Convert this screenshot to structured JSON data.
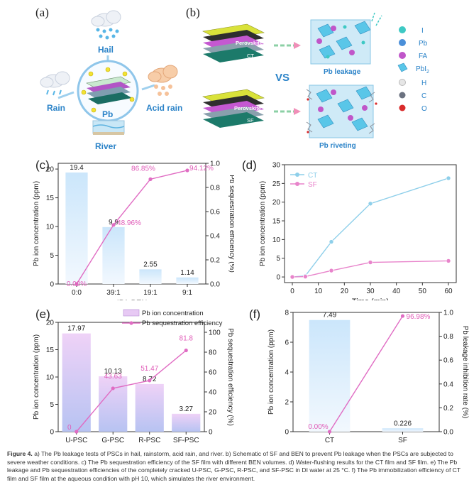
{
  "panel_a": {
    "label": "(a)",
    "hail": "Hail",
    "rain": "Rain",
    "acid_rain": "Acid rain",
    "center": "Pb",
    "river": "River"
  },
  "panel_b": {
    "label": "(b)",
    "top_film_label": "Perovskite",
    "top_film_tag": "CT",
    "bottom_film_label": "Perovskite",
    "bottom_film_tag": "SF",
    "vs": "VS",
    "top_result": "Pb leakage",
    "bottom_result": "Pb riveting",
    "legend": [
      {
        "label": "I",
        "color": "#3ec9c4"
      },
      {
        "label": "Pb",
        "color": "#4a8fd9"
      },
      {
        "label": "FA",
        "color": "#c056c9"
      },
      {
        "label": "PbI",
        "sub": "2",
        "color": "#59c6e8"
      },
      {
        "label": "H",
        "color": "#e6e6e6"
      },
      {
        "label": "C",
        "color": "#6b7280"
      },
      {
        "label": "O",
        "color": "#d92b2b"
      }
    ]
  },
  "chart_data": [
    {
      "id": "c",
      "label": "(c)",
      "type": "bar",
      "categories": [
        "0:0",
        "39:1",
        "19:1",
        "9:1"
      ],
      "values": [
        19.4,
        9.9,
        2.55,
        1.14
      ],
      "value_labels": [
        "19.4",
        "9.9",
        "2.55",
        "1.14"
      ],
      "line": {
        "values": [
          0.0,
          0.4896,
          0.8685,
          0.9412
        ],
        "labels": [
          "0.00%",
          "48.96%",
          "86.85%",
          "94.12%"
        ]
      },
      "xlabel": "IPA:BEN",
      "ylabel": "Pb ion concentration (ppm)",
      "y2label": "Pb sequestration efficiency (%)",
      "ylim": [
        0,
        21
      ],
      "y2lim": [
        0,
        1.0
      ],
      "yticks": [
        "0",
        "5",
        "10",
        "15",
        "20"
      ],
      "y2ticks": [
        "0.0",
        "0.2",
        "0.4",
        "0.6",
        "0.8",
        "1.0"
      ]
    },
    {
      "id": "d",
      "label": "(d)",
      "type": "line",
      "x": [
        0,
        5,
        15,
        30,
        60
      ],
      "series": [
        {
          "name": "CT",
          "color": "#8ecfea",
          "values": [
            0.0,
            0.3,
            9.4,
            19.6,
            26.4
          ]
        },
        {
          "name": "SF",
          "color": "#e884cb",
          "values": [
            0.0,
            0.1,
            1.7,
            3.9,
            4.3
          ]
        }
      ],
      "xlabel": "Time (min)",
      "ylabel": "Pb ion concentration (ppm)",
      "xlim": [
        -3,
        63
      ],
      "ylim": [
        -1.5,
        30
      ],
      "xticks": [
        "0",
        "10",
        "20",
        "30",
        "40",
        "50",
        "60"
      ],
      "yticks": [
        "0",
        "5",
        "10",
        "15",
        "20",
        "25",
        "30"
      ]
    },
    {
      "id": "e",
      "label": "(e)",
      "type": "bar",
      "categories": [
        "U-PSC",
        "G-PSC",
        "R-PSC",
        "SF-PSC"
      ],
      "values": [
        17.97,
        10.13,
        8.72,
        3.27
      ],
      "value_labels": [
        "17.97",
        "10.13",
        "8.72",
        "3.27"
      ],
      "line": {
        "values": [
          0,
          43.63,
          51.47,
          81.8
        ],
        "labels": [
          "0",
          "43.63",
          "51.47",
          "81.8"
        ]
      },
      "legend": [
        "Pb ion concentration",
        "Pb sequestration efficiency"
      ],
      "ylabel": "Pb ion concentration (ppm)",
      "y2label": "Pb sequestration efficiency (%)",
      "ylim": [
        0,
        20
      ],
      "y2lim": [
        0,
        110
      ],
      "yticks": [
        "0",
        "5",
        "10",
        "15",
        "20"
      ],
      "y2ticks": [
        "0",
        "20",
        "40",
        "60",
        "80",
        "100"
      ]
    },
    {
      "id": "f",
      "label": "(f)",
      "type": "bar",
      "categories": [
        "CT",
        "SF"
      ],
      "values": [
        7.49,
        0.226
      ],
      "value_labels": [
        "7.49",
        "0.226"
      ],
      "line": {
        "values": [
          0.0,
          0.9698
        ],
        "labels": [
          "0.00%",
          "96.98%"
        ]
      },
      "ylabel": "Pb ion concentration (ppm)",
      "y2label": "Pb leakage inhibition rate (%)",
      "ylim": [
        0,
        8
      ],
      "y2lim": [
        0,
        1.0
      ],
      "yticks": [
        "0",
        "2",
        "4",
        "6",
        "8"
      ],
      "y2ticks": [
        "0.0",
        "0.2",
        "0.4",
        "0.6",
        "0.8",
        "1.0"
      ]
    }
  ],
  "caption": {
    "lead": "Figure 4.",
    "text": "a) The Pb leakage tests of PSCs in hail, rainstorm, acid rain, and river. b) Schematic of SF and BEN to prevent Pb leakage when the PSCs are subjected to severe weather conditions. c) The Pb sequestration efficiency of the SF film with different BEN volumes. d) Water-flushing results for the CT film and SF film. e) The Pb leakage and Pb sequestration efficiencies of the completely cracked U-PSC, G-PSC, R-PSC, and SF-PSC in DI water at 25 °C. f) The Pb immobilization efficiency of CT film and SF film at the aqueous condition with pH 10, which simulates the river environment."
  }
}
